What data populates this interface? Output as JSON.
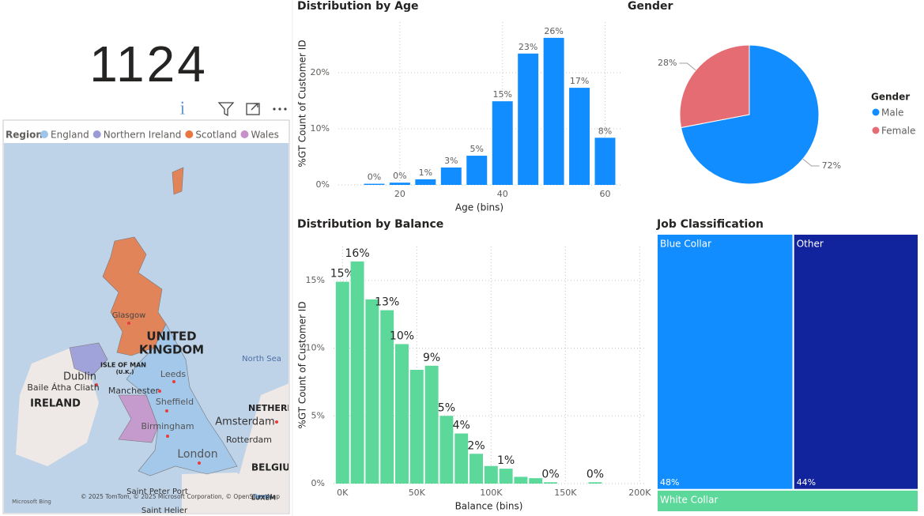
{
  "card": {
    "value": 1124
  },
  "map": {
    "legend_title": "Region",
    "regions": [
      {
        "name": "England",
        "color": "#9fc6ea"
      },
      {
        "name": "Northern Ireland",
        "color": "#9a9ad6"
      },
      {
        "name": "Scotland",
        "color": "#e8763f"
      },
      {
        "name": "Wales",
        "color": "#c690c8"
      }
    ],
    "labels": [
      "Glasgow",
      "UNITED",
      "KINGDOM",
      "ISLE OF MAN",
      "(U.K.)",
      "Dublin",
      "Baile Átha Cliath",
      "IRELAND",
      "Leeds",
      "Manchester",
      "Sheffield",
      "North Sea",
      "NETHERL",
      "Amsterdam",
      "Rotterdam",
      "Birmingham",
      "London",
      "BELGIU",
      "Saint Peter Port",
      "LUXEM",
      "Saint Helier",
      "© 2025 TomTom, © 2025 Microsoft Corporation, © OpenStreetMap",
      "Terms",
      "Microsoft Bing"
    ]
  },
  "chart_data": [
    {
      "type": "bar",
      "title": "Distribution by Age",
      "x_label": "Age (bins)",
      "y_label": "%GT Count of Customer ID",
      "x": [
        15,
        20,
        25,
        30,
        35,
        40,
        45,
        50,
        55,
        60
      ],
      "values": [
        0.2,
        0.4,
        1.0,
        3.1,
        5.2,
        14.9,
        23.4,
        26.2,
        17.3,
        8.4
      ],
      "value_labels": [
        "0%",
        "0%",
        "1%",
        "3%",
        "5%",
        "15%",
        "23%",
        "26%",
        "17%",
        "8%"
      ],
      "color": "#118dff",
      "xlim": [
        8,
        63
      ],
      "xticks": [
        20,
        40,
        60
      ],
      "ylim": [
        0,
        29
      ],
      "yticks": [
        {
          "value": 0,
          "label": "0%"
        },
        {
          "value": 10,
          "label": "10%"
        },
        {
          "value": 20,
          "label": "20%"
        }
      ],
      "grid": true
    },
    {
      "type": "bar",
      "title": "Distribution by Balance",
      "x_label": "Balance (bins)",
      "y_label": "%GT Count of Customer ID",
      "x": [
        0,
        10000,
        20000,
        30000,
        40000,
        50000,
        60000,
        70000,
        80000,
        90000,
        100000,
        110000,
        120000,
        130000,
        140000,
        170000
      ],
      "values": [
        14.9,
        16.4,
        13.6,
        12.8,
        10.3,
        8.4,
        8.7,
        5.0,
        3.7,
        2.2,
        1.3,
        1.1,
        0.5,
        0.4,
        0.1,
        0.1
      ],
      "value_labels": [
        "15%",
        "16%",
        null,
        "13%",
        "10%",
        null,
        "9%",
        "5%",
        "4%",
        "2%",
        null,
        "1%",
        null,
        null,
        "0%",
        "0%"
      ],
      "color": "#5bd89a",
      "xlim": [
        -6000,
        203000
      ],
      "xticks": [
        {
          "value": 0,
          "label": "0K"
        },
        {
          "value": 50000,
          "label": "50K"
        },
        {
          "value": 100000,
          "label": "100K"
        },
        {
          "value": 150000,
          "label": "150K"
        },
        {
          "value": 200000,
          "label": "200K"
        }
      ],
      "ylim": [
        0,
        17.5
      ],
      "yticks": [
        {
          "value": 0,
          "label": "0%"
        },
        {
          "value": 5,
          "label": "5%"
        },
        {
          "value": 10,
          "label": "10%"
        },
        {
          "value": 15,
          "label": "15%"
        }
      ],
      "grid": true
    },
    {
      "type": "pie",
      "title": "Gender",
      "legend_title": "Gender",
      "categories": [
        "Male",
        "Female"
      ],
      "values": [
        72,
        28
      ],
      "value_labels": [
        "72%",
        "28%"
      ],
      "colors": [
        "#118dff",
        "#e66c74"
      ],
      "legend": "right"
    },
    {
      "type": "treemap",
      "title": "Job Classification",
      "categories": [
        "Blue Collar",
        "Other",
        "White Collar"
      ],
      "values": [
        48,
        44,
        8
      ],
      "value_labels": [
        "48%",
        "44%",
        null
      ],
      "colors": [
        "#118dff",
        "#12239e",
        "#5bd89a"
      ]
    }
  ]
}
